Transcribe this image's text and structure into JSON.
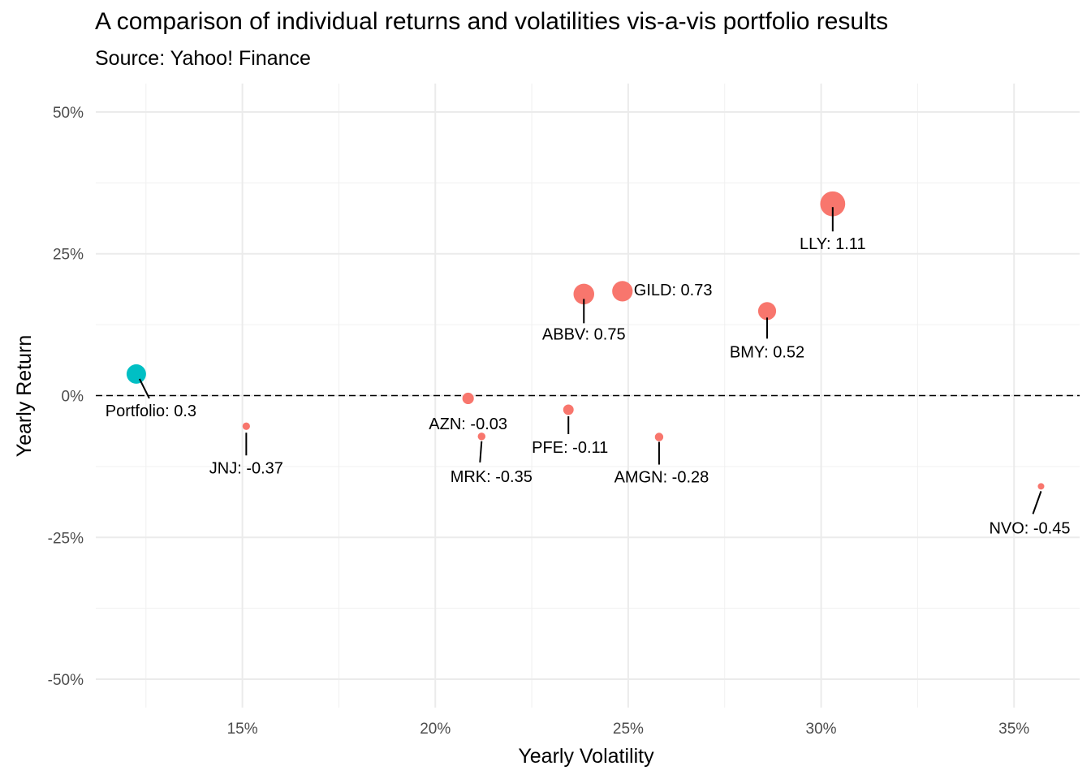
{
  "chart_data": {
    "type": "scatter",
    "title": "A comparison of individual returns and volatilities vis-a-vis portfolio results",
    "subtitle": "Source: Yahoo! Finance",
    "xlabel": "Yearly Volatility",
    "ylabel": "Yearly Return",
    "xlim": [
      0.112,
      0.367
    ],
    "ylim": [
      -0.55,
      0.55
    ],
    "x_ticks": [
      0.15,
      0.2,
      0.25,
      0.3,
      0.35
    ],
    "x_tick_labels": [
      "15%",
      "20%",
      "25%",
      "30%",
      "35%"
    ],
    "y_ticks": [
      0.5,
      0.25,
      0,
      -0.25,
      -0.5
    ],
    "y_tick_labels": [
      "50%",
      "25%",
      "0%",
      "-25%",
      "-50%"
    ],
    "grid": true,
    "reference_line": {
      "y": 0,
      "style": "dashed"
    },
    "colors": {
      "asset": "#F8766D",
      "portfolio": "#00BFC4"
    },
    "points": [
      {
        "name": "Portfolio",
        "x": 0.1225,
        "y": 0.038,
        "value": 0.3,
        "label": "Portfolio: 0.3",
        "group": "portfolio"
      },
      {
        "name": "JNJ",
        "x": 0.151,
        "y": -0.054,
        "value": -0.37,
        "label": "JNJ: -0.37",
        "group": "asset"
      },
      {
        "name": "AZN",
        "x": 0.2085,
        "y": -0.005,
        "value": -0.03,
        "label": "AZN: -0.03",
        "group": "asset"
      },
      {
        "name": "MRK",
        "x": 0.212,
        "y": -0.072,
        "value": -0.35,
        "label": "MRK: -0.35",
        "group": "asset"
      },
      {
        "name": "PFE",
        "x": 0.2345,
        "y": -0.025,
        "value": -0.11,
        "label": "PFE: -0.11",
        "group": "asset"
      },
      {
        "name": "ABBV",
        "x": 0.2385,
        "y": 0.179,
        "value": 0.75,
        "label": "ABBV: 0.75",
        "group": "asset"
      },
      {
        "name": "GILD",
        "x": 0.2485,
        "y": 0.184,
        "value": 0.73,
        "label": "GILD: 0.73",
        "group": "asset"
      },
      {
        "name": "AMGN",
        "x": 0.258,
        "y": -0.073,
        "value": -0.28,
        "label": "AMGN: -0.28",
        "group": "asset"
      },
      {
        "name": "BMY",
        "x": 0.286,
        "y": 0.149,
        "value": 0.52,
        "label": "BMY: 0.52",
        "group": "asset"
      },
      {
        "name": "LLY",
        "x": 0.303,
        "y": 0.338,
        "value": 1.11,
        "label": "LLY: 1.11",
        "group": "asset"
      },
      {
        "name": "NVO",
        "x": 0.357,
        "y": -0.16,
        "value": -0.45,
        "label": "NVO: -0.45",
        "group": "asset"
      }
    ]
  }
}
